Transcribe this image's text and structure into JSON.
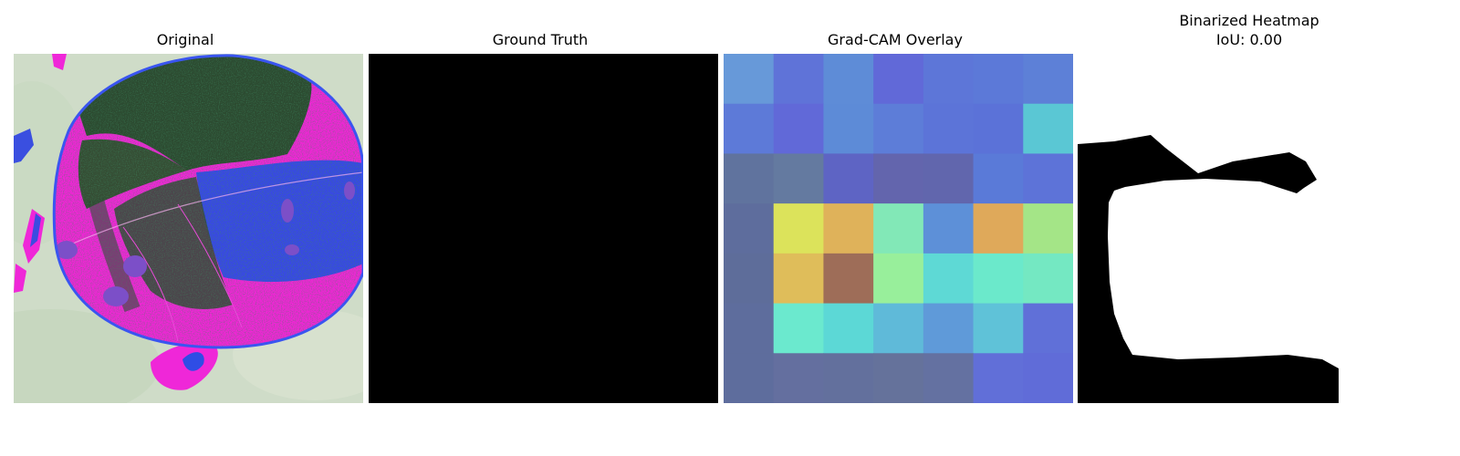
{
  "panels": [
    {
      "title": "Original"
    },
    {
      "title": "Ground Truth"
    },
    {
      "title": "Grad-CAM Overlay"
    },
    {
      "title": "Binarized Heatmap",
      "subtitle": "IoU: 0.00"
    }
  ],
  "gradcam": {
    "grid": [
      [
        "#6799d9",
        "#5f73d8",
        "#5e8cd7",
        "#6169d8",
        "#5d76d8",
        "#5c79d8",
        "#5d80d7"
      ],
      [
        "#5d7ad8",
        "#6169d8",
        "#5d8bd7",
        "#5d7dd8",
        "#5c74d8",
        "#5b72d8",
        "#5ac7d4"
      ],
      [
        "#60739e",
        "#647aa0",
        "#5e64c4",
        "#6365ad",
        "#6166ad",
        "#5a7ad8",
        "#5d73d8"
      ],
      [
        "#5e6d9d",
        "#dce35b",
        "#dfb25a",
        "#82e8b7",
        "#5d90d8",
        "#dfa95a",
        "#a4e587"
      ],
      [
        "#5e6d9a",
        "#dfbd5a",
        "#9e6d58",
        "#98ef9b",
        "#5ed9d5",
        "#6be9cb",
        "#74e8c2"
      ],
      [
        "#5e6d9d",
        "#6be9ce",
        "#5cd8d6",
        "#5fbad9",
        "#5f9ad9",
        "#5fc2d8",
        "#6070d8"
      ],
      [
        "#5e6d9d",
        "#646f9f",
        "#63709d",
        "#65729b",
        "#6471a1",
        "#616fd8",
        "#606cd8"
      ]
    ]
  }
}
